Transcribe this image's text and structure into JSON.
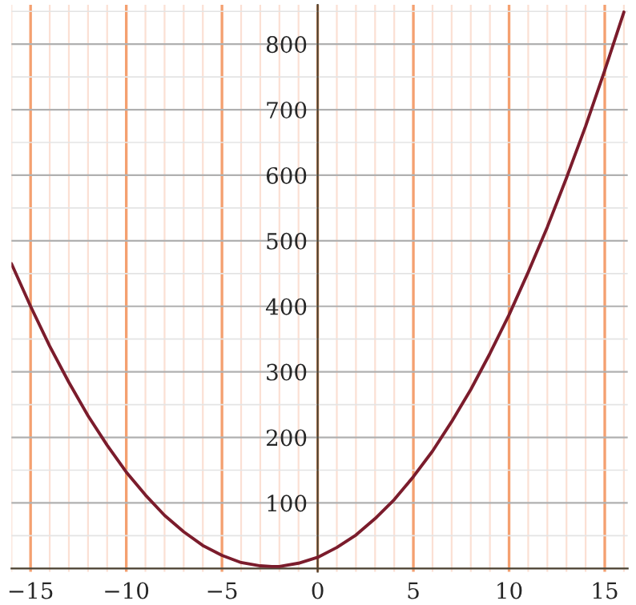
{
  "chart_data": {
    "type": "line",
    "x": [
      -16,
      -15,
      -14,
      -13,
      -12,
      -11,
      -10,
      -9,
      -8,
      -7,
      -6,
      -5,
      -4,
      -3,
      -2.4,
      -2,
      -1,
      0,
      1,
      2,
      3,
      4,
      5,
      6,
      7,
      8,
      9,
      10,
      11,
      12,
      13,
      14,
      15,
      16
    ],
    "series": [
      {
        "color": "#7b1c2c",
        "values": [
          465,
          400,
          339,
          284,
          233,
          188,
          147,
          112,
          81,
          56,
          35,
          20,
          9,
          4,
          3,
          3,
          8,
          17,
          32,
          51,
          76,
          105,
          140,
          179,
          224,
          273,
          328,
          387,
          452,
          521,
          596,
          675,
          760,
          849
        ]
      }
    ],
    "xlim": [
      -16.0,
      16.2
    ],
    "ylim": [
      -5,
      860
    ],
    "xticks": [
      -15,
      -10,
      -5,
      0,
      5,
      10,
      15
    ],
    "yticks": [
      100,
      200,
      300,
      400,
      500,
      600,
      700,
      800
    ],
    "grid": true,
    "marker": "none",
    "line_style": "solid"
  }
}
